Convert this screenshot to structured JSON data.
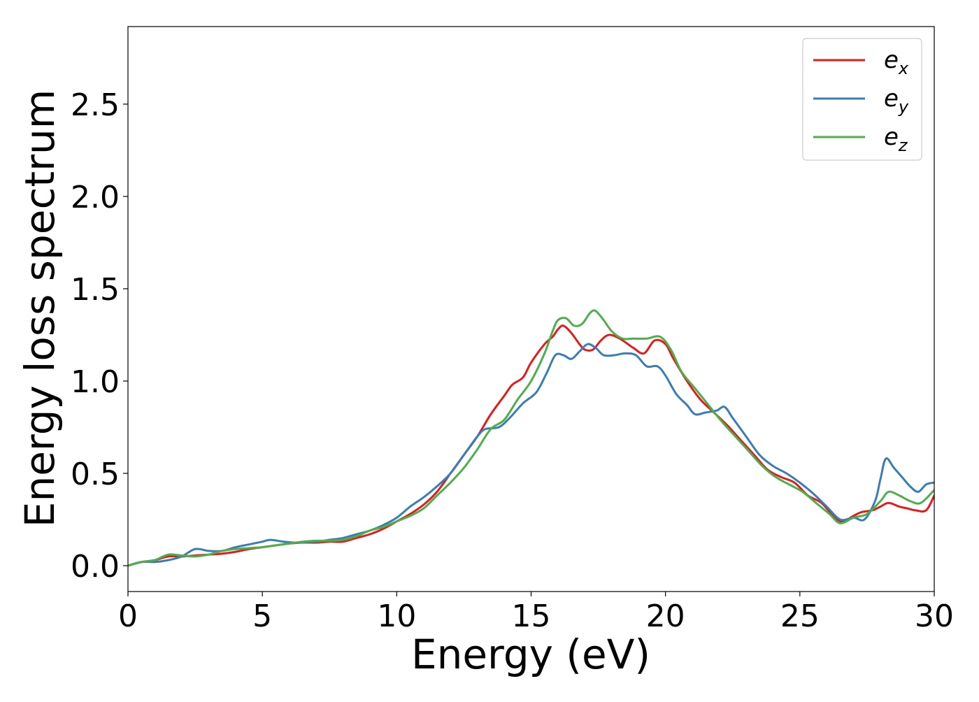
{
  "chart_data": {
    "type": "line",
    "title": "",
    "xlabel": "Energy (eV)",
    "ylabel": "Energy loss spectrum",
    "xlim": [
      0,
      30
    ],
    "ylim": [
      -0.14,
      2.92
    ],
    "xticks": [
      0,
      5,
      10,
      15,
      20,
      25,
      30
    ],
    "yticks": [
      0.0,
      0.5,
      1.0,
      1.5,
      2.0,
      2.5
    ],
    "xtick_labels": [
      "0",
      "5",
      "10",
      "15",
      "20",
      "25",
      "30"
    ],
    "ytick_labels": [
      "0.0",
      "0.5",
      "1.0",
      "1.5",
      "2.0",
      "2.5"
    ],
    "grid": false,
    "legend_position": "top-right",
    "series": [
      {
        "name": "e_x",
        "label_base": "e",
        "label_sub": "x",
        "color": "#e41a1c",
        "points": [
          [
            0,
            0
          ],
          [
            0.5,
            0.02
          ],
          [
            1,
            0.03
          ],
          [
            1.5,
            0.05
          ],
          [
            2,
            0.05
          ],
          [
            2.5,
            0.055
          ],
          [
            3,
            0.06
          ],
          [
            3.5,
            0.065
          ],
          [
            4,
            0.075
          ],
          [
            4.5,
            0.09
          ],
          [
            5,
            0.1
          ],
          [
            5.5,
            0.11
          ],
          [
            6,
            0.12
          ],
          [
            6.5,
            0.125
          ],
          [
            7,
            0.125
          ],
          [
            7.5,
            0.13
          ],
          [
            8,
            0.13
          ],
          [
            8.5,
            0.15
          ],
          [
            9,
            0.17
          ],
          [
            9.5,
            0.2
          ],
          [
            10,
            0.24
          ],
          [
            10.5,
            0.28
          ],
          [
            11,
            0.33
          ],
          [
            11.5,
            0.4
          ],
          [
            12,
            0.5
          ],
          [
            12.5,
            0.6
          ],
          [
            13,
            0.7
          ],
          [
            13.5,
            0.82
          ],
          [
            14,
            0.92
          ],
          [
            14.3,
            0.98
          ],
          [
            14.7,
            1.02
          ],
          [
            15,
            1.1
          ],
          [
            15.5,
            1.2
          ],
          [
            15.8,
            1.24
          ],
          [
            16,
            1.28
          ],
          [
            16.2,
            1.3
          ],
          [
            16.5,
            1.26
          ],
          [
            16.8,
            1.2
          ],
          [
            17,
            1.17
          ],
          [
            17.3,
            1.17
          ],
          [
            17.6,
            1.22
          ],
          [
            17.9,
            1.25
          ],
          [
            18.3,
            1.23
          ],
          [
            18.8,
            1.18
          ],
          [
            19.2,
            1.15
          ],
          [
            19.6,
            1.22
          ],
          [
            20,
            1.2
          ],
          [
            20.3,
            1.12
          ],
          [
            20.8,
            1.0
          ],
          [
            21.3,
            0.9
          ],
          [
            21.8,
            0.83
          ],
          [
            22.3,
            0.76
          ],
          [
            22.8,
            0.68
          ],
          [
            23.3,
            0.6
          ],
          [
            23.8,
            0.52
          ],
          [
            24.3,
            0.48
          ],
          [
            24.8,
            0.45
          ],
          [
            25.3,
            0.38
          ],
          [
            25.8,
            0.34
          ],
          [
            26.3,
            0.26
          ],
          [
            26.6,
            0.24
          ],
          [
            27,
            0.27
          ],
          [
            27.3,
            0.29
          ],
          [
            27.7,
            0.3
          ],
          [
            28,
            0.32
          ],
          [
            28.3,
            0.34
          ],
          [
            28.7,
            0.32
          ],
          [
            29,
            0.31
          ],
          [
            29.3,
            0.3
          ],
          [
            29.7,
            0.3
          ],
          [
            30,
            0.38
          ]
        ]
      },
      {
        "name": "e_y",
        "label_base": "e",
        "label_sub": "y",
        "color": "#377eb8",
        "points": [
          [
            0,
            0
          ],
          [
            0.5,
            0.02
          ],
          [
            1,
            0.02
          ],
          [
            1.5,
            0.03
          ],
          [
            2,
            0.05
          ],
          [
            2.5,
            0.09
          ],
          [
            3,
            0.08
          ],
          [
            3.5,
            0.08
          ],
          [
            4,
            0.1
          ],
          [
            4.5,
            0.115
          ],
          [
            5,
            0.13
          ],
          [
            5.3,
            0.14
          ],
          [
            5.8,
            0.13
          ],
          [
            6.3,
            0.125
          ],
          [
            7,
            0.13
          ],
          [
            7.5,
            0.14
          ],
          [
            8,
            0.15
          ],
          [
            8.5,
            0.17
          ],
          [
            9,
            0.19
          ],
          [
            9.5,
            0.22
          ],
          [
            10,
            0.26
          ],
          [
            10.5,
            0.32
          ],
          [
            11,
            0.37
          ],
          [
            11.5,
            0.43
          ],
          [
            12,
            0.5
          ],
          [
            12.5,
            0.6
          ],
          [
            13,
            0.7
          ],
          [
            13.3,
            0.74
          ],
          [
            13.8,
            0.75
          ],
          [
            14.2,
            0.8
          ],
          [
            14.7,
            0.88
          ],
          [
            15.2,
            0.94
          ],
          [
            15.6,
            1.05
          ],
          [
            15.9,
            1.14
          ],
          [
            16.2,
            1.14
          ],
          [
            16.5,
            1.12
          ],
          [
            16.8,
            1.16
          ],
          [
            17.1,
            1.2
          ],
          [
            17.4,
            1.18
          ],
          [
            17.7,
            1.14
          ],
          [
            18.1,
            1.14
          ],
          [
            18.5,
            1.15
          ],
          [
            18.9,
            1.14
          ],
          [
            19.3,
            1.08
          ],
          [
            19.7,
            1.08
          ],
          [
            20,
            1.03
          ],
          [
            20.4,
            0.93
          ],
          [
            20.8,
            0.87
          ],
          [
            21.1,
            0.82
          ],
          [
            21.5,
            0.83
          ],
          [
            21.9,
            0.84
          ],
          [
            22.2,
            0.86
          ],
          [
            22.5,
            0.8
          ],
          [
            23,
            0.7
          ],
          [
            23.5,
            0.6
          ],
          [
            24,
            0.54
          ],
          [
            24.5,
            0.5
          ],
          [
            25,
            0.45
          ],
          [
            25.5,
            0.39
          ],
          [
            26,
            0.32
          ],
          [
            26.5,
            0.25
          ],
          [
            27,
            0.26
          ],
          [
            27.4,
            0.25
          ],
          [
            27.8,
            0.35
          ],
          [
            28,
            0.47
          ],
          [
            28.2,
            0.58
          ],
          [
            28.5,
            0.53
          ],
          [
            28.8,
            0.48
          ],
          [
            29.1,
            0.43
          ],
          [
            29.4,
            0.4
          ],
          [
            29.7,
            0.44
          ],
          [
            30,
            0.45
          ]
        ]
      },
      {
        "name": "e_z",
        "label_base": "e",
        "label_sub": "z",
        "color": "#4daf4a",
        "points": [
          [
            0,
            0
          ],
          [
            0.5,
            0.02
          ],
          [
            1,
            0.03
          ],
          [
            1.5,
            0.06
          ],
          [
            2,
            0.055
          ],
          [
            2.5,
            0.05
          ],
          [
            3,
            0.06
          ],
          [
            3.5,
            0.08
          ],
          [
            4,
            0.09
          ],
          [
            4.5,
            0.095
          ],
          [
            5,
            0.1
          ],
          [
            5.5,
            0.11
          ],
          [
            6,
            0.12
          ],
          [
            6.5,
            0.13
          ],
          [
            7,
            0.135
          ],
          [
            7.5,
            0.135
          ],
          [
            8,
            0.14
          ],
          [
            8.5,
            0.16
          ],
          [
            9,
            0.19
          ],
          [
            9.5,
            0.21
          ],
          [
            10,
            0.24
          ],
          [
            10.5,
            0.27
          ],
          [
            11,
            0.31
          ],
          [
            11.5,
            0.38
          ],
          [
            12,
            0.45
          ],
          [
            12.5,
            0.53
          ],
          [
            13,
            0.63
          ],
          [
            13.5,
            0.74
          ],
          [
            14,
            0.79
          ],
          [
            14.5,
            0.9
          ],
          [
            15,
            1.0
          ],
          [
            15.5,
            1.15
          ],
          [
            15.8,
            1.27
          ],
          [
            16,
            1.33
          ],
          [
            16.3,
            1.34
          ],
          [
            16.6,
            1.3
          ],
          [
            16.9,
            1.31
          ],
          [
            17.2,
            1.37
          ],
          [
            17.4,
            1.38
          ],
          [
            17.7,
            1.33
          ],
          [
            18,
            1.27
          ],
          [
            18.4,
            1.23
          ],
          [
            18.8,
            1.23
          ],
          [
            19.3,
            1.23
          ],
          [
            19.8,
            1.24
          ],
          [
            20.2,
            1.17
          ],
          [
            20.6,
            1.05
          ],
          [
            21.1,
            0.96
          ],
          [
            21.6,
            0.87
          ],
          [
            22.1,
            0.78
          ],
          [
            22.6,
            0.7
          ],
          [
            23.1,
            0.62
          ],
          [
            23.6,
            0.54
          ],
          [
            24.1,
            0.48
          ],
          [
            24.6,
            0.44
          ],
          [
            25.1,
            0.4
          ],
          [
            25.6,
            0.34
          ],
          [
            26.1,
            0.28
          ],
          [
            26.5,
            0.23
          ],
          [
            27,
            0.26
          ],
          [
            27.5,
            0.28
          ],
          [
            28,
            0.35
          ],
          [
            28.3,
            0.4
          ],
          [
            28.7,
            0.38
          ],
          [
            29.1,
            0.35
          ],
          [
            29.5,
            0.34
          ],
          [
            30,
            0.41
          ]
        ]
      }
    ]
  }
}
